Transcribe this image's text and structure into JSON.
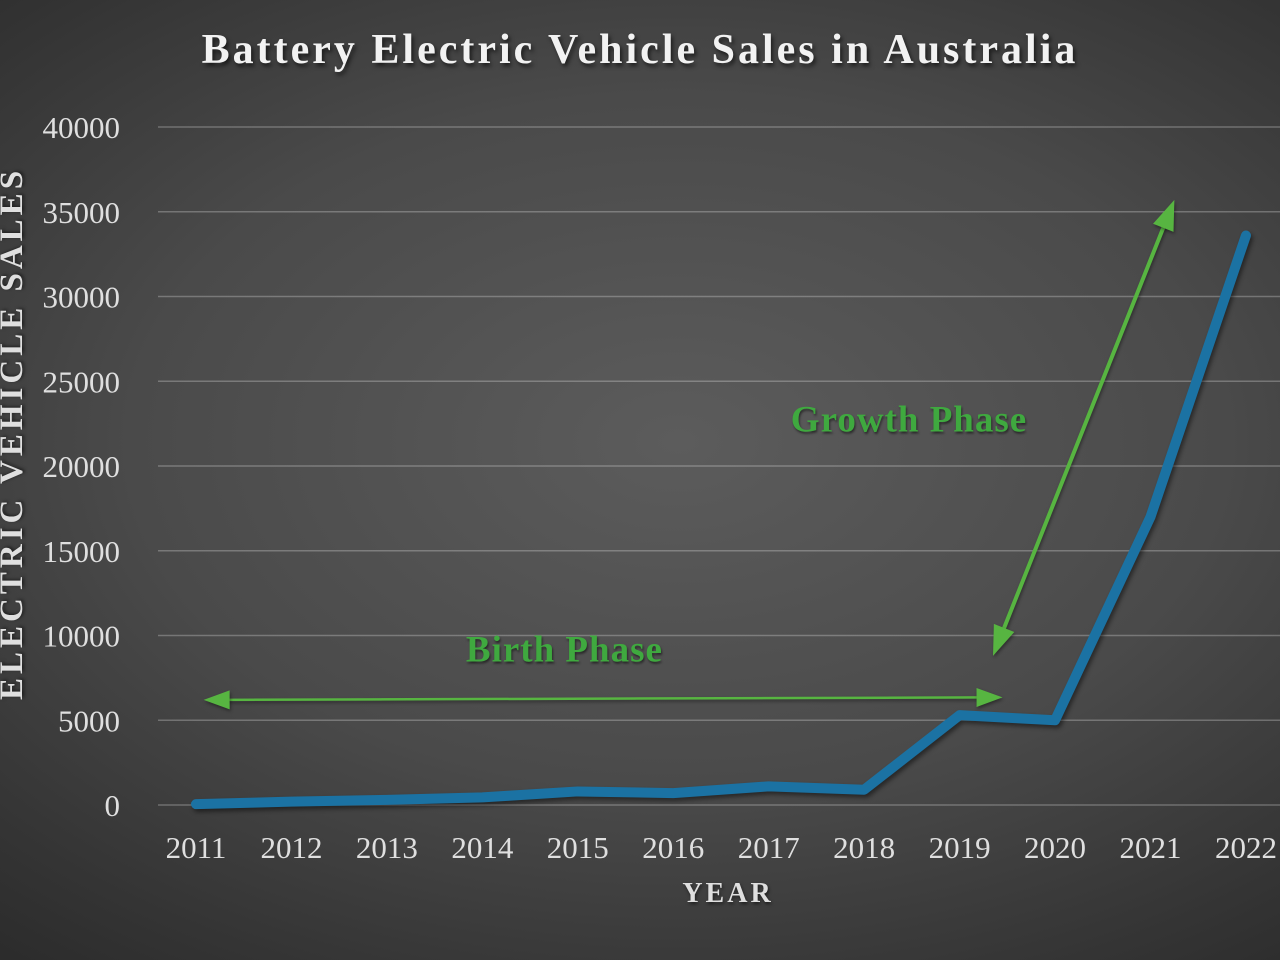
{
  "title": "Battery Electric Vehicle Sales in Australia",
  "colors": {
    "background_center": "#5c5c5c",
    "background_edge": "#232323",
    "title_text": "#f2f2f2",
    "tick_text": "#dfdfdf",
    "line": "#1b72a3",
    "annotation_text_green": "#3fa93f",
    "arrow_green": "#57b541"
  },
  "chart_data": {
    "type": "line",
    "title": "Battery Electric Vehicle Sales in Australia",
    "xlabel": "YEAR",
    "ylabel": "ELECTRIC VEHICLE SALES",
    "x": [
      2011,
      2012,
      2013,
      2014,
      2015,
      2016,
      2017,
      2018,
      2019,
      2020,
      2021,
      2022
    ],
    "values": [
      50,
      200,
      300,
      450,
      800,
      700,
      1100,
      900,
      5300,
      5000,
      17000,
      33600
    ],
    "series_name": "Battery Electric Vehicle Sales",
    "ylim": [
      0,
      40000
    ],
    "yticks": [
      0,
      5000,
      10000,
      15000,
      20000,
      25000,
      30000,
      35000,
      40000
    ],
    "grid": "horizontal",
    "legend": "none",
    "annotations": [
      {
        "name": "birth-phase",
        "text": "Birth Phase",
        "label_pos": {
          "year": 2014.86,
          "value": 9150
        },
        "arrow": {
          "heads": "both",
          "from": {
            "year": 2011.08,
            "value": 6200
          },
          "to": {
            "year": 2019.45,
            "value": 6350
          }
        }
      },
      {
        "name": "growth-phase",
        "text": "Growth Phase",
        "label_pos": {
          "year": 2018.47,
          "value": 22700
        },
        "arrow": {
          "heads": "both",
          "from": {
            "year": 2019.35,
            "value": 8800
          },
          "to": {
            "year": 2021.25,
            "value": 35700
          }
        }
      }
    ]
  }
}
